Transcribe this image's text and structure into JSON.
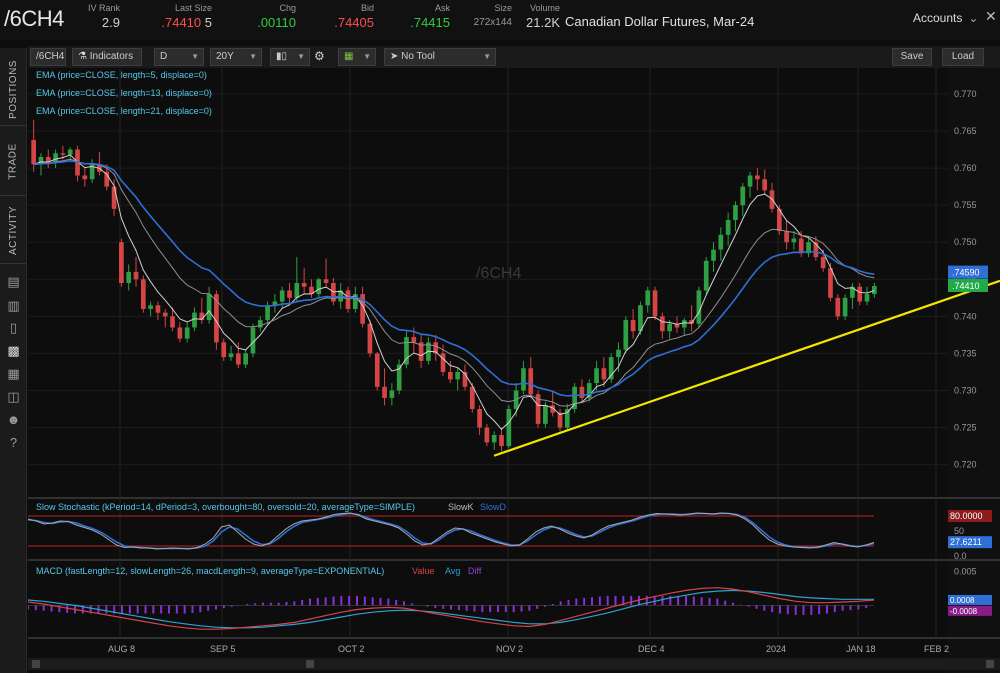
{
  "quote": {
    "symbol": "/6CH4",
    "fields": [
      {
        "label": "IV Rank",
        "value": "2.9",
        "color": "#cfcfcf"
      },
      {
        "label": "Last Size",
        "value": ".74410",
        "extra": "5",
        "color": "#ff4d4d"
      },
      {
        "label": "Chg",
        "value": ".00110",
        "color": "#2ecc40"
      },
      {
        "label": "Bid",
        "value": ".74405",
        "color": "#ff4d4d"
      },
      {
        "label": "Ask",
        "value": ".74415",
        "color": "#2ecc40"
      },
      {
        "label": "Size",
        "value": "272x144",
        "color": "#9a9a9a"
      },
      {
        "label": "Volume",
        "value": "21.2K",
        "color": "#cfcfcf"
      }
    ],
    "description": "Canadian Dollar Futures, Mar-24"
  },
  "header": {
    "accounts_label": "Accounts"
  },
  "sidebar": {
    "tabs": [
      "POSITIONS",
      "TRADE",
      "ACTIVITY"
    ]
  },
  "toolbar": {
    "symbol": "/6CH4",
    "indicators_label": "Indicators",
    "period": "D",
    "range": "20Y",
    "tool_label": "No Tool",
    "save_label": "Save",
    "load_label": "Load"
  },
  "watermark": "/6CH4",
  "studies": {
    "ema": [
      "EMA (price=CLOSE, length=5, displace=0)",
      "EMA (price=CLOSE, length=13, displace=0)",
      "EMA (price=CLOSE, length=21, displace=0)"
    ],
    "stochastic": {
      "label": "Slow Stochastic (kPeriod=14, dPeriod=3, overbought=80, oversold=20, averageType=SIMPLE)",
      "slowk_label": "SlowK",
      "slowd_label": "SlowD",
      "price_ticks": [
        "50",
        "0.0"
      ],
      "last_values": [
        "80.0000",
        "27.6211"
      ],
      "overbought": 80,
      "oversold": 20
    },
    "macd": {
      "label": "MACD (fastLength=12, slowLength=26, macdLength=9, averageType=EXPONENTIAL)",
      "value_label": "Value",
      "avg_label": "Avg",
      "diff_label": "Diff",
      "price_ticks": [
        "0.005"
      ],
      "last_values": [
        "0.0008",
        "-0.0008"
      ]
    }
  },
  "colors": {
    "up": "#2ea043",
    "down": "#d64545",
    "ema5": "#d0d0d0",
    "ema13": "#909090",
    "ema21": "#2f6fd6",
    "trendline": "#f2e600",
    "last_price_box": "#23a94a",
    "ema_box": "#2f6fd6"
  },
  "chart_data": {
    "type": "candlestick",
    "price_axis": {
      "ticks": [
        "0.770",
        "0.765",
        "0.760",
        "0.755",
        "0.750",
        "0.745",
        "0.740",
        "0.735",
        "0.730",
        "0.725",
        "0.720"
      ],
      "last_price": "0.74410",
      "ema_last": "0.74590"
    },
    "x_ticks": [
      "AUG 8",
      "SEP 5",
      "OCT 2",
      "NOV 2",
      "DEC 4",
      "2024",
      "JAN 18",
      "FEB 2"
    ],
    "trendline": [
      [
        "2023-11-01",
        0.7212
      ],
      [
        "2024-02-06",
        0.7448
      ]
    ],
    "ohlc": [
      [
        0.7638,
        0.7665,
        0.7595,
        0.7605
      ],
      [
        0.7605,
        0.762,
        0.759,
        0.7615
      ],
      [
        0.7615,
        0.7625,
        0.76,
        0.7608
      ],
      [
        0.7608,
        0.7625,
        0.76,
        0.762
      ],
      [
        0.762,
        0.763,
        0.7612,
        0.7618
      ],
      [
        0.7618,
        0.7628,
        0.7608,
        0.7625
      ],
      [
        0.7625,
        0.763,
        0.7582,
        0.759
      ],
      [
        0.759,
        0.76,
        0.7575,
        0.7585
      ],
      [
        0.7585,
        0.7612,
        0.758,
        0.7605
      ],
      [
        0.7605,
        0.7622,
        0.759,
        0.7595
      ],
      [
        0.7595,
        0.7605,
        0.757,
        0.7575
      ],
      [
        0.7575,
        0.7585,
        0.7535,
        0.7545
      ],
      [
        0.75,
        0.7505,
        0.744,
        0.7445
      ],
      [
        0.7445,
        0.747,
        0.7435,
        0.746
      ],
      [
        0.746,
        0.748,
        0.744,
        0.745
      ],
      [
        0.745,
        0.7455,
        0.7405,
        0.741
      ],
      [
        0.741,
        0.742,
        0.74,
        0.7415
      ],
      [
        0.7415,
        0.742,
        0.7395,
        0.7405
      ],
      [
        0.7405,
        0.741,
        0.7385,
        0.74
      ],
      [
        0.74,
        0.7412,
        0.738,
        0.7385
      ],
      [
        0.7385,
        0.7392,
        0.7365,
        0.737
      ],
      [
        0.737,
        0.7392,
        0.7365,
        0.7385
      ],
      [
        0.7385,
        0.7412,
        0.738,
        0.7405
      ],
      [
        0.7405,
        0.7425,
        0.739,
        0.7395
      ],
      [
        0.7395,
        0.744,
        0.739,
        0.743
      ],
      [
        0.743,
        0.7435,
        0.7355,
        0.7365
      ],
      [
        0.7365,
        0.737,
        0.734,
        0.7345
      ],
      [
        0.7345,
        0.736,
        0.734,
        0.735
      ],
      [
        0.735,
        0.7365,
        0.733,
        0.7335
      ],
      [
        0.7335,
        0.7355,
        0.733,
        0.735
      ],
      [
        0.735,
        0.739,
        0.7345,
        0.7385
      ],
      [
        0.7385,
        0.74,
        0.738,
        0.7395
      ],
      [
        0.7395,
        0.742,
        0.739,
        0.7415
      ],
      [
        0.7415,
        0.743,
        0.7405,
        0.742
      ],
      [
        0.742,
        0.744,
        0.741,
        0.7435
      ],
      [
        0.7435,
        0.7445,
        0.7415,
        0.7425
      ],
      [
        0.7425,
        0.748,
        0.742,
        0.7445
      ],
      [
        0.7445,
        0.7465,
        0.743,
        0.744
      ],
      [
        0.744,
        0.745,
        0.7425,
        0.743
      ],
      [
        0.743,
        0.7452,
        0.7425,
        0.745
      ],
      [
        0.745,
        0.7478,
        0.744,
        0.7445
      ],
      [
        0.7445,
        0.7452,
        0.7415,
        0.742
      ],
      [
        0.742,
        0.7445,
        0.741,
        0.7435
      ],
      [
        0.7435,
        0.744,
        0.7405,
        0.741
      ],
      [
        0.741,
        0.744,
        0.7405,
        0.743
      ],
      [
        0.743,
        0.744,
        0.7385,
        0.739
      ],
      [
        0.739,
        0.7395,
        0.7345,
        0.735
      ],
      [
        0.735,
        0.7352,
        0.73,
        0.7305
      ],
      [
        0.7305,
        0.733,
        0.728,
        0.729
      ],
      [
        0.729,
        0.731,
        0.728,
        0.73
      ],
      [
        0.73,
        0.7342,
        0.7295,
        0.7335
      ],
      [
        0.7335,
        0.738,
        0.733,
        0.7372
      ],
      [
        0.7372,
        0.7385,
        0.735,
        0.7365
      ],
      [
        0.7365,
        0.7375,
        0.733,
        0.734
      ],
      [
        0.734,
        0.7372,
        0.7335,
        0.7365
      ],
      [
        0.7365,
        0.7375,
        0.734,
        0.735
      ],
      [
        0.735,
        0.7362,
        0.732,
        0.7325
      ],
      [
        0.7325,
        0.734,
        0.731,
        0.7315
      ],
      [
        0.7315,
        0.733,
        0.73,
        0.7325
      ],
      [
        0.7325,
        0.7335,
        0.73,
        0.7305
      ],
      [
        0.7305,
        0.731,
        0.727,
        0.7275
      ],
      [
        0.7275,
        0.728,
        0.724,
        0.725
      ],
      [
        0.725,
        0.7255,
        0.7225,
        0.723
      ],
      [
        0.723,
        0.7245,
        0.722,
        0.724
      ],
      [
        0.724,
        0.725,
        0.7218,
        0.7225
      ],
      [
        0.7225,
        0.728,
        0.7222,
        0.7275
      ],
      [
        0.7275,
        0.731,
        0.7265,
        0.73
      ],
      [
        0.73,
        0.734,
        0.7295,
        0.733
      ],
      [
        0.733,
        0.7345,
        0.729,
        0.7295
      ],
      [
        0.7295,
        0.73,
        0.725,
        0.7255
      ],
      [
        0.7255,
        0.7285,
        0.725,
        0.728
      ],
      [
        0.728,
        0.73,
        0.7265,
        0.727
      ],
      [
        0.727,
        0.7275,
        0.7245,
        0.725
      ],
      [
        0.725,
        0.7282,
        0.7245,
        0.7275
      ],
      [
        0.7275,
        0.731,
        0.727,
        0.7305
      ],
      [
        0.7305,
        0.7315,
        0.7285,
        0.729
      ],
      [
        0.729,
        0.7315,
        0.7285,
        0.731
      ],
      [
        0.731,
        0.734,
        0.73,
        0.733
      ],
      [
        0.733,
        0.7345,
        0.7305,
        0.7315
      ],
      [
        0.7315,
        0.735,
        0.731,
        0.7345
      ],
      [
        0.7345,
        0.7365,
        0.7325,
        0.7355
      ],
      [
        0.7355,
        0.74,
        0.735,
        0.7395
      ],
      [
        0.7395,
        0.741,
        0.737,
        0.738
      ],
      [
        0.738,
        0.742,
        0.7375,
        0.7415
      ],
      [
        0.7415,
        0.744,
        0.7405,
        0.7435
      ],
      [
        0.7435,
        0.744,
        0.7395,
        0.74
      ],
      [
        0.74,
        0.7405,
        0.737,
        0.738
      ],
      [
        0.738,
        0.7395,
        0.737,
        0.739
      ],
      [
        0.739,
        0.74,
        0.7378,
        0.7385
      ],
      [
        0.7385,
        0.7398,
        0.7375,
        0.7395
      ],
      [
        0.7395,
        0.7415,
        0.738,
        0.739
      ],
      [
        0.739,
        0.744,
        0.7385,
        0.7435
      ],
      [
        0.7435,
        0.748,
        0.743,
        0.7475
      ],
      [
        0.7475,
        0.75,
        0.746,
        0.749
      ],
      [
        0.749,
        0.752,
        0.7475,
        0.751
      ],
      [
        0.751,
        0.754,
        0.7495,
        0.753
      ],
      [
        0.753,
        0.7555,
        0.7515,
        0.755
      ],
      [
        0.755,
        0.758,
        0.7535,
        0.7575
      ],
      [
        0.7575,
        0.7595,
        0.756,
        0.759
      ],
      [
        0.759,
        0.76,
        0.757,
        0.7585
      ],
      [
        0.7585,
        0.7598,
        0.7565,
        0.757
      ],
      [
        0.757,
        0.758,
        0.754,
        0.7545
      ],
      [
        0.7545,
        0.755,
        0.751,
        0.7515
      ],
      [
        0.7515,
        0.753,
        0.749,
        0.75
      ],
      [
        0.75,
        0.7515,
        0.749,
        0.7505
      ],
      [
        0.7505,
        0.7515,
        0.748,
        0.7485
      ],
      [
        0.7485,
        0.7505,
        0.748,
        0.75
      ],
      [
        0.75,
        0.7508,
        0.7475,
        0.748
      ],
      [
        0.748,
        0.749,
        0.746,
        0.7465
      ],
      [
        0.7465,
        0.7472,
        0.742,
        0.7425
      ],
      [
        0.7425,
        0.743,
        0.7395,
        0.74
      ],
      [
        0.74,
        0.743,
        0.7395,
        0.7425
      ],
      [
        0.7425,
        0.7445,
        0.741,
        0.744
      ],
      [
        0.744,
        0.7445,
        0.7415,
        0.742
      ],
      [
        0.742,
        0.744,
        0.7415,
        0.743
      ],
      [
        0.743,
        0.7445,
        0.7425,
        0.7441
      ]
    ],
    "stochastic_slowk": [
      74,
      70,
      64,
      66,
      70,
      69,
      62,
      57,
      52,
      44,
      33,
      22,
      17,
      18,
      16,
      16,
      14,
      15,
      16,
      15,
      14,
      17,
      24,
      36,
      58,
      62,
      48,
      34,
      24,
      20,
      26,
      40,
      54,
      64,
      70,
      72,
      74,
      78,
      83,
      85,
      86,
      82,
      74,
      70,
      66,
      62,
      56,
      44,
      30,
      22,
      25,
      36,
      48,
      56,
      54,
      46,
      40,
      34,
      28,
      24,
      20,
      22,
      34,
      48,
      56,
      60,
      54,
      46,
      40,
      36,
      42,
      52,
      60,
      64,
      68,
      72,
      78,
      82,
      85,
      84,
      83,
      82,
      84,
      86,
      85,
      84,
      86,
      85,
      82,
      74,
      62,
      46,
      32,
      24,
      20,
      18,
      17,
      16,
      18,
      22,
      27,
      24,
      20,
      18,
      22,
      27
    ],
    "stochastic_slowd": [
      72,
      71,
      67,
      65,
      68,
      69,
      66,
      60,
      55,
      48,
      38,
      28,
      20,
      18,
      17,
      16,
      15,
      15,
      15,
      15,
      15,
      16,
      20,
      30,
      48,
      58,
      54,
      42,
      30,
      23,
      24,
      34,
      48,
      59,
      67,
      70,
      73,
      76,
      80,
      83,
      85,
      83,
      77,
      72,
      68,
      64,
      59,
      49,
      36,
      26,
      24,
      32,
      44,
      52,
      54,
      50,
      43,
      37,
      31,
      26,
      22,
      22,
      30,
      42,
      52,
      58,
      56,
      50,
      43,
      38,
      40,
      48,
      56,
      62,
      66,
      70,
      75,
      80,
      83,
      84,
      84,
      83,
      83,
      85,
      85,
      84,
      85,
      85,
      83,
      77,
      66,
      52,
      38,
      28,
      22,
      19,
      18,
      17,
      17,
      20,
      24,
      24,
      21,
      19,
      21,
      25
    ],
    "macd_value": [
      0.0005,
      0.0002,
      -0.0002,
      -0.0006,
      -0.001,
      -0.0014,
      -0.0018,
      -0.0022,
      -0.0026,
      -0.003,
      -0.0033,
      -0.0035,
      -0.0035,
      -0.0034,
      -0.0032,
      -0.003,
      -0.0028,
      -0.0025,
      -0.002,
      -0.0015,
      -0.001,
      -0.0006,
      -0.0004,
      -0.0003,
      -0.0004,
      -0.0008,
      -0.0012,
      -0.0016,
      -0.002,
      -0.0024,
      -0.0027,
      -0.003,
      -0.0031,
      -0.0028,
      -0.0022,
      -0.0016,
      -0.001,
      -0.0004,
      0.0002,
      0.0008,
      0.0013,
      0.0018,
      0.0022,
      0.0025,
      0.0026,
      0.0024,
      0.002,
      0.0015,
      0.001,
      0.0006,
      0.0004,
      0.0004,
      0.0005,
      0.0006,
      0.0008
    ],
    "macd_avg": [
      0.0008,
      0.0006,
      0.0003,
      0.0,
      -0.0004,
      -0.0008,
      -0.0012,
      -0.0016,
      -0.002,
      -0.0024,
      -0.0027,
      -0.003,
      -0.0032,
      -0.0033,
      -0.0033,
      -0.0032,
      -0.003,
      -0.0028,
      -0.0025,
      -0.0021,
      -0.0017,
      -0.0013,
      -0.001,
      -0.0008,
      -0.0007,
      -0.0008,
      -0.001,
      -0.0013,
      -0.0016,
      -0.0019,
      -0.0022,
      -0.0025,
      -0.0027,
      -0.0027,
      -0.0025,
      -0.0021,
      -0.0016,
      -0.0011,
      -0.0005,
      0.0001,
      0.0006,
      0.0011,
      0.0015,
      0.0019,
      0.0021,
      0.0022,
      0.0021,
      0.0019,
      0.0016,
      0.0013,
      0.0011,
      0.001,
      0.0009,
      0.0009,
      0.0009
    ]
  }
}
